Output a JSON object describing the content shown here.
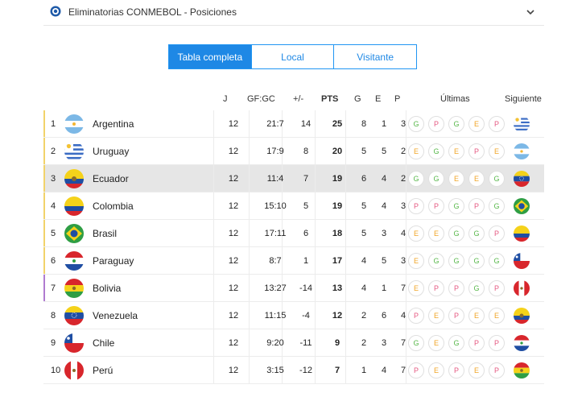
{
  "header": {
    "title": "Eliminatorias CONMEBOL - Posiciones",
    "logo_icon": "conmebol-logo-icon",
    "expand_icon": "chevron-down-icon"
  },
  "tabs": [
    {
      "label": "Tabla completa",
      "active": true
    },
    {
      "label": "Local",
      "active": false
    },
    {
      "label": "Visitante",
      "active": false
    }
  ],
  "columns": {
    "j": "J",
    "gf_gc": "GF:GC",
    "diff": "+/-",
    "pts": "PTS",
    "g": "G",
    "e": "E",
    "p": "P",
    "ultimas": "Últimas",
    "siguiente": "Siguiente"
  },
  "colors": {
    "accent": "#1e88e5",
    "win": "#58b84a",
    "draw": "#f0a527",
    "loss": "#e55a82",
    "qualify_bar": "#f2d36a",
    "playoff_bar": "#b07bd0"
  },
  "rows": [
    {
      "pos": "1",
      "team": "Argentina",
      "flag": "argentina",
      "j": "12",
      "gfgc": "21:7",
      "diff": "14",
      "pts": "25",
      "g": "8",
      "e": "1",
      "p": "3",
      "form": [
        "G",
        "P",
        "G",
        "E",
        "P"
      ],
      "next": "uruguay",
      "highlight": false
    },
    {
      "pos": "2",
      "team": "Uruguay",
      "flag": "uruguay",
      "j": "12",
      "gfgc": "17:9",
      "diff": "8",
      "pts": "20",
      "g": "5",
      "e": "5",
      "p": "2",
      "form": [
        "E",
        "G",
        "E",
        "P",
        "E"
      ],
      "next": "argentina",
      "highlight": false
    },
    {
      "pos": "3",
      "team": "Ecuador",
      "flag": "ecuador",
      "j": "12",
      "gfgc": "11:4",
      "diff": "7",
      "pts": "19",
      "g": "6",
      "e": "4",
      "p": "2",
      "form": [
        "G",
        "G",
        "E",
        "E",
        "G"
      ],
      "next": "venezuela",
      "highlight": true
    },
    {
      "pos": "4",
      "team": "Colombia",
      "flag": "colombia",
      "j": "12",
      "gfgc": "15:10",
      "diff": "5",
      "pts": "19",
      "g": "5",
      "e": "4",
      "p": "3",
      "form": [
        "P",
        "P",
        "G",
        "P",
        "G"
      ],
      "next": "brasil",
      "highlight": false
    },
    {
      "pos": "5",
      "team": "Brasil",
      "flag": "brasil",
      "j": "12",
      "gfgc": "17:11",
      "diff": "6",
      "pts": "18",
      "g": "5",
      "e": "3",
      "p": "4",
      "form": [
        "E",
        "E",
        "G",
        "G",
        "P"
      ],
      "next": "colombia",
      "highlight": false
    },
    {
      "pos": "6",
      "team": "Paraguay",
      "flag": "paraguay",
      "j": "12",
      "gfgc": "8:7",
      "diff": "1",
      "pts": "17",
      "g": "4",
      "e": "5",
      "p": "3",
      "form": [
        "E",
        "G",
        "G",
        "G",
        "G"
      ],
      "next": "chile",
      "highlight": false
    },
    {
      "pos": "7",
      "team": "Bolivia",
      "flag": "bolivia",
      "j": "12",
      "gfgc": "13:27",
      "diff": "-14",
      "pts": "13",
      "g": "4",
      "e": "1",
      "p": "7",
      "form": [
        "E",
        "P",
        "P",
        "G",
        "P"
      ],
      "next": "peru",
      "highlight": false
    },
    {
      "pos": "8",
      "team": "Venezuela",
      "flag": "venezuela",
      "j": "12",
      "gfgc": "11:15",
      "diff": "-4",
      "pts": "12",
      "g": "2",
      "e": "6",
      "p": "4",
      "form": [
        "P",
        "E",
        "P",
        "E",
        "E"
      ],
      "next": "ecuador",
      "highlight": false
    },
    {
      "pos": "9",
      "team": "Chile",
      "flag": "chile",
      "j": "12",
      "gfgc": "9:20",
      "diff": "-11",
      "pts": "9",
      "g": "2",
      "e": "3",
      "p": "7",
      "form": [
        "G",
        "E",
        "G",
        "P",
        "P"
      ],
      "next": "paraguay",
      "highlight": false
    },
    {
      "pos": "10",
      "team": "Perú",
      "flag": "peru",
      "j": "12",
      "gfgc": "3:15",
      "diff": "-12",
      "pts": "7",
      "g": "1",
      "e": "4",
      "p": "7",
      "form": [
        "P",
        "E",
        "P",
        "E",
        "P"
      ],
      "next": "bolivia",
      "highlight": false
    }
  ]
}
